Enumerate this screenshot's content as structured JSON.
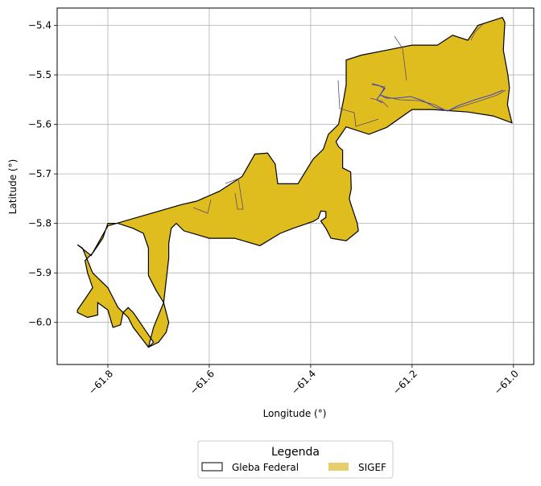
{
  "chart_data": {
    "type": "map",
    "xlabel": "Longitude (°)",
    "ylabel": "Latitude (°)",
    "xlim": [
      -61.9,
      -60.96
    ],
    "ylim": [
      -6.085,
      -5.365
    ],
    "grid": true,
    "xticks": [
      {
        "value": -61.8,
        "label": "−61.8"
      },
      {
        "value": -61.6,
        "label": "−61.6"
      },
      {
        "value": -61.4,
        "label": "−61.4"
      },
      {
        "value": -61.2,
        "label": "−61.2"
      },
      {
        "value": -61.0,
        "label": "−61.0"
      }
    ],
    "yticks": [
      {
        "value": -5.4,
        "label": "−5.4"
      },
      {
        "value": -5.5,
        "label": "−5.5"
      },
      {
        "value": -5.6,
        "label": "−5.6"
      },
      {
        "value": -5.7,
        "label": "−5.7"
      },
      {
        "value": -5.8,
        "label": "−5.8"
      },
      {
        "value": -5.9,
        "label": "−5.9"
      },
      {
        "value": -6.0,
        "label": "−6.0"
      }
    ],
    "layers": [
      {
        "name": "Gleba Federal",
        "fill": "none",
        "edge": "#000000"
      },
      {
        "name": "SIGEF",
        "fill": "#e0bd1e",
        "edge": "#5a4a3a"
      }
    ],
    "gleba_outline": [
      [
        -61.022,
        -5.384
      ],
      [
        -61.017,
        -5.394
      ],
      [
        -61.02,
        -5.45
      ],
      [
        -61.011,
        -5.5
      ],
      [
        -61.008,
        -5.526
      ],
      [
        -61.012,
        -5.56
      ],
      [
        -61.003,
        -5.597
      ],
      [
        -61.04,
        -5.583
      ],
      [
        -61.09,
        -5.575
      ],
      [
        -61.16,
        -5.57
      ],
      [
        -61.2,
        -5.57
      ],
      [
        -61.25,
        -5.606
      ],
      [
        -61.285,
        -5.62
      ],
      [
        -61.33,
        -5.605
      ],
      [
        -61.35,
        -5.635
      ],
      [
        -61.345,
        -5.645
      ],
      [
        -61.337,
        -5.652
      ],
      [
        -61.337,
        -5.688
      ],
      [
        -61.321,
        -5.696
      ],
      [
        -61.32,
        -5.73
      ],
      [
        -61.324,
        -5.75
      ],
      [
        -61.321,
        -5.76
      ],
      [
        -61.308,
        -5.8
      ],
      [
        -61.306,
        -5.815
      ],
      [
        -61.33,
        -5.835
      ],
      [
        -61.36,
        -5.83
      ],
      [
        -61.37,
        -5.81
      ],
      [
        -61.38,
        -5.795
      ],
      [
        -61.37,
        -5.788
      ],
      [
        -61.37,
        -5.776
      ],
      [
        -61.38,
        -5.775
      ],
      [
        -61.385,
        -5.79
      ],
      [
        -61.395,
        -5.796
      ],
      [
        -61.435,
        -5.81
      ],
      [
        -61.46,
        -5.82
      ],
      [
        -61.5,
        -5.845
      ],
      [
        -61.55,
        -5.83
      ],
      [
        -61.6,
        -5.83
      ],
      [
        -61.65,
        -5.815
      ],
      [
        -61.665,
        -5.8
      ],
      [
        -61.675,
        -5.81
      ],
      [
        -61.68,
        -5.84
      ],
      [
        -61.68,
        -5.87
      ],
      [
        -61.69,
        -5.96
      ],
      [
        -61.71,
        -6.01
      ],
      [
        -61.72,
        -6.05
      ],
      [
        -61.7,
        -6.04
      ],
      [
        -61.685,
        -6.02
      ],
      [
        -61.68,
        -6.0
      ],
      [
        -61.69,
        -5.96
      ],
      [
        -61.705,
        -5.935
      ],
      [
        -61.72,
        -5.905
      ],
      [
        -61.72,
        -5.85
      ],
      [
        -61.73,
        -5.82
      ],
      [
        -61.75,
        -5.81
      ],
      [
        -61.78,
        -5.8
      ],
      [
        -61.8,
        -5.8
      ],
      [
        -61.81,
        -5.83
      ],
      [
        -61.83,
        -5.86
      ],
      [
        -61.845,
        -5.875
      ],
      [
        -61.84,
        -5.9
      ],
      [
        -61.83,
        -5.93
      ],
      [
        -61.85,
        -5.96
      ],
      [
        -61.86,
        -5.975
      ],
      [
        -61.86,
        -5.98
      ],
      [
        -61.84,
        -5.99
      ],
      [
        -61.82,
        -5.985
      ],
      [
        -61.82,
        -5.96
      ],
      [
        -61.8,
        -5.975
      ],
      [
        -61.79,
        -6.01
      ],
      [
        -61.775,
        -6.005
      ],
      [
        -61.77,
        -5.98
      ],
      [
        -61.76,
        -5.97
      ],
      [
        -61.75,
        -5.98
      ],
      [
        -61.74,
        -5.995
      ],
      [
        -61.73,
        -6.01
      ],
      [
        -61.71,
        -6.04
      ],
      [
        -61.72,
        -6.05
      ],
      [
        -61.75,
        -6.01
      ],
      [
        -61.76,
        -5.99
      ],
      [
        -61.78,
        -5.97
      ],
      [
        -61.79,
        -5.95
      ],
      [
        -61.8,
        -5.93
      ],
      [
        -61.82,
        -5.91
      ],
      [
        -61.83,
        -5.9
      ],
      [
        -61.85,
        -5.85
      ],
      [
        -61.86,
        -5.843
      ],
      [
        -61.833,
        -5.865
      ],
      [
        -61.8,
        -5.805
      ],
      [
        -61.655,
        -5.762
      ],
      [
        -61.625,
        -5.755
      ],
      [
        -61.58,
        -5.735
      ],
      [
        -61.535,
        -5.705
      ],
      [
        -61.51,
        -5.66
      ],
      [
        -61.485,
        -5.658
      ],
      [
        -61.47,
        -5.68
      ],
      [
        -61.465,
        -5.72
      ],
      [
        -61.425,
        -5.72
      ],
      [
        -61.395,
        -5.67
      ],
      [
        -61.375,
        -5.65
      ],
      [
        -61.365,
        -5.62
      ],
      [
        -61.345,
        -5.6
      ],
      [
        -61.335,
        -5.55
      ],
      [
        -61.33,
        -5.52
      ],
      [
        -61.33,
        -5.47
      ],
      [
        -61.3,
        -5.46
      ],
      [
        -61.25,
        -5.45
      ],
      [
        -61.2,
        -5.44
      ],
      [
        -61.15,
        -5.44
      ],
      [
        -61.12,
        -5.42
      ],
      [
        -61.09,
        -5.43
      ],
      [
        -61.07,
        -5.4
      ],
      [
        -61.022,
        -5.384
      ]
    ]
  },
  "legend": {
    "title": "Legenda",
    "entries": [
      {
        "label": "Gleba Federal"
      },
      {
        "label": "SIGEF"
      }
    ]
  }
}
